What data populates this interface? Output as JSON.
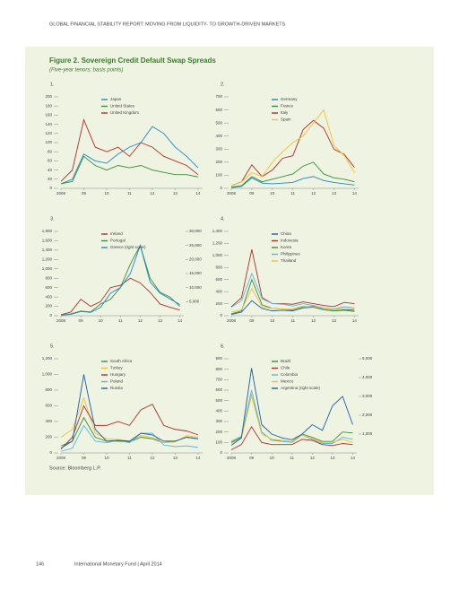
{
  "header": "GLOBAL FINANCIAL STABILITY REPORT: MOVING FROM LIQUIDITY- TO GROWTH-DRIVEN MARKETS",
  "figure": {
    "title": "Figure 2. Sovereign Credit Default Swap Spreads",
    "subtitle": "(Five-year tenors; basis points)"
  },
  "source": "Source: Bloomberg L.P.",
  "footer": {
    "page": "146",
    "text": "International Monetary Fund | April 2014"
  },
  "chart_data": [
    {
      "type": "line",
      "label": "1.",
      "x": [
        2008,
        2008.5,
        2009,
        2009.5,
        2010,
        2010.5,
        2011,
        2011.5,
        2012,
        2012.5,
        2013,
        2013.5,
        2014
      ],
      "xlim": [
        2008,
        2014.2
      ],
      "xticks": [
        2008,
        {
          "value": 2009,
          "label": "09"
        },
        {
          "value": 2010,
          "label": "10"
        },
        {
          "value": 2011,
          "label": "11"
        },
        {
          "value": 2012,
          "label": "12"
        },
        {
          "value": 2013,
          "label": "13"
        },
        {
          "value": 2014,
          "label": "14"
        }
      ],
      "ylim": [
        0,
        200
      ],
      "yticks": [
        0,
        20,
        40,
        60,
        80,
        100,
        120,
        140,
        160,
        180,
        200
      ],
      "series": [
        {
          "name": "Japan",
          "color": "#1f88c9",
          "values": [
            10,
            20,
            75,
            60,
            55,
            75,
            90,
            100,
            135,
            120,
            90,
            70,
            45
          ]
        },
        {
          "name": "United States",
          "color": "#3a8f3a",
          "values": [
            10,
            15,
            70,
            50,
            40,
            50,
            45,
            50,
            40,
            35,
            30,
            30,
            25
          ]
        },
        {
          "name": "United Kingdom",
          "color": "#b0302a",
          "values": [
            15,
            40,
            150,
            90,
            80,
            90,
            70,
            100,
            90,
            70,
            60,
            50,
            30
          ]
        }
      ]
    },
    {
      "type": "line",
      "label": "2.",
      "x": [
        2008,
        2008.5,
        2009,
        2009.5,
        2010,
        2010.5,
        2011,
        2011.5,
        2012,
        2012.5,
        2013,
        2013.5,
        2014
      ],
      "xlim": [
        2008,
        2014.2
      ],
      "xticks": [
        2008,
        {
          "value": 2009,
          "label": "09"
        },
        {
          "value": 2010,
          "label": "10"
        },
        {
          "value": 2011,
          "label": "11"
        },
        {
          "value": 2012,
          "label": "12"
        },
        {
          "value": 2013,
          "label": "13"
        },
        {
          "value": 2014,
          "label": "14"
        }
      ],
      "ylim": [
        0,
        700
      ],
      "yticks": [
        0,
        100,
        200,
        300,
        400,
        500,
        600,
        700
      ],
      "series": [
        {
          "name": "Germany",
          "color": "#1f88c9",
          "values": [
            5,
            15,
            80,
            40,
            35,
            40,
            45,
            75,
            90,
            60,
            45,
            35,
            25
          ]
        },
        {
          "name": "France",
          "color": "#3a8f3a",
          "values": [
            10,
            20,
            90,
            50,
            70,
            90,
            110,
            170,
            200,
            110,
            80,
            70,
            50
          ]
        },
        {
          "name": "Italy",
          "color": "#b0302a",
          "values": [
            20,
            50,
            180,
            90,
            140,
            230,
            250,
            450,
            520,
            460,
            300,
            260,
            160
          ]
        },
        {
          "name": "Spain",
          "color": "#f2c12e",
          "values": [
            20,
            50,
            120,
            90,
            200,
            280,
            350,
            400,
            500,
            600,
            330,
            250,
            120
          ]
        }
      ]
    },
    {
      "type": "line",
      "label": "3.",
      "x": [
        2008,
        2008.5,
        2009,
        2009.5,
        2010,
        2010.5,
        2011,
        2011.5,
        2012,
        2012.5,
        2013,
        2013.5,
        2014
      ],
      "xlim": [
        2008,
        2014.2
      ],
      "xticks": [
        2008,
        {
          "value": 2009,
          "label": "09"
        },
        {
          "value": 2010,
          "label": "10"
        },
        {
          "value": 2011,
          "label": "11"
        },
        {
          "value": 2012,
          "label": "12"
        },
        {
          "value": 2013,
          "label": "13"
        },
        {
          "value": 2014,
          "label": "14"
        }
      ],
      "ylim": [
        0,
        1800
      ],
      "yticks": [
        0,
        200,
        400,
        600,
        800,
        {
          "value": 1000,
          "label": "1,000"
        },
        {
          "value": 1200,
          "label": "1,200"
        },
        {
          "value": 1400,
          "label": "1,400"
        },
        {
          "value": 1600,
          "label": "1,600"
        },
        {
          "value": 1800,
          "label": "1,800"
        }
      ],
      "y2lim": [
        0,
        30000
      ],
      "y2ticks": [
        {
          "value": 5000,
          "label": "5,000"
        },
        {
          "value": 10000,
          "label": "10,000"
        },
        {
          "value": 15000,
          "label": "15,000"
        },
        {
          "value": 20000,
          "label": "20,000"
        },
        {
          "value": 25000,
          "label": "25,000"
        },
        {
          "value": 30000,
          "label": "30,000"
        }
      ],
      "series": [
        {
          "name": "Ireland",
          "color": "#b0302a",
          "values": [
            20,
            80,
            350,
            200,
            300,
            600,
            650,
            800,
            700,
            500,
            250,
            180,
            120
          ]
        },
        {
          "name": "Portugal",
          "color": "#3a8f3a",
          "values": [
            10,
            40,
            100,
            80,
            250,
            350,
            600,
            1100,
            1500,
            800,
            500,
            400,
            200
          ]
        },
        {
          "name": "Greece (right scale)",
          "color": "#1f88c9",
          "axis": "y2",
          "values": [
            200,
            500,
            1500,
            1200,
            3000,
            8000,
            10000,
            15000,
            25000,
            12000,
            8000,
            6000,
            4000
          ]
        }
      ]
    },
    {
      "type": "line",
      "label": "4.",
      "x": [
        2008,
        2008.5,
        2009,
        2009.5,
        2010,
        2010.5,
        2011,
        2011.5,
        2012,
        2012.5,
        2013,
        2013.5,
        2014
      ],
      "xlim": [
        2008,
        2014.2
      ],
      "xticks": [
        2008,
        {
          "value": 2009,
          "label": "09"
        },
        {
          "value": 2010,
          "label": "10"
        },
        {
          "value": 2011,
          "label": "11"
        },
        {
          "value": 2012,
          "label": "12"
        },
        {
          "value": 2013,
          "label": "13"
        },
        {
          "value": 2014,
          "label": "14"
        }
      ],
      "ylim": [
        0,
        1400
      ],
      "yticks": [
        0,
        200,
        400,
        600,
        800,
        {
          "value": 1000,
          "label": "1,000"
        },
        {
          "value": 1200,
          "label": "1,200"
        },
        {
          "value": 1400,
          "label": "1,400"
        }
      ],
      "series": [
        {
          "name": "China",
          "color": "#1f5fa8",
          "values": [
            20,
            60,
            250,
            120,
            80,
            90,
            80,
            130,
            140,
            100,
            80,
            100,
            90
          ]
        },
        {
          "name": "Indonesia",
          "color": "#b0302a",
          "values": [
            150,
            300,
            1100,
            300,
            200,
            200,
            190,
            230,
            200,
            170,
            150,
            220,
            200
          ]
        },
        {
          "name": "Korea",
          "color": "#3a8f3a",
          "values": [
            30,
            80,
            600,
            180,
            120,
            110,
            100,
            150,
            160,
            100,
            80,
            90,
            70
          ]
        },
        {
          "name": "Philippines",
          "color": "#5bb7e0",
          "values": [
            140,
            250,
            700,
            280,
            200,
            190,
            160,
            200,
            170,
            130,
            110,
            150,
            130
          ]
        },
        {
          "name": "Thailand",
          "color": "#f2c12e",
          "values": [
            60,
            100,
            450,
            150,
            120,
            110,
            110,
            160,
            150,
            120,
            100,
            130,
            110
          ]
        }
      ]
    },
    {
      "type": "line",
      "label": "5.",
      "x": [
        2008,
        2008.5,
        2009,
        2009.5,
        2010,
        2010.5,
        2011,
        2011.5,
        2012,
        2012.5,
        2013,
        2013.5,
        2014
      ],
      "xlim": [
        2008,
        2014.2
      ],
      "xticks": [
        2008,
        {
          "value": 2009,
          "label": "09"
        },
        {
          "value": 2010,
          "label": "10"
        },
        {
          "value": 2011,
          "label": "11"
        },
        {
          "value": 2012,
          "label": "12"
        },
        {
          "value": 2013,
          "label": "13"
        },
        {
          "value": 2014,
          "label": "14"
        }
      ],
      "ylim": [
        0,
        1200
      ],
      "yticks": [
        0,
        200,
        400,
        600,
        800,
        {
          "value": 1000,
          "label": "1,000"
        },
        {
          "value": 1200,
          "label": "1,200"
        }
      ],
      "series": [
        {
          "name": "South Africa",
          "color": "#3a8f3a",
          "values": [
            90,
            150,
            450,
            200,
            150,
            150,
            140,
            200,
            180,
            130,
            150,
            200,
            180
          ]
        },
        {
          "name": "Turkey",
          "color": "#f2c12e",
          "values": [
            200,
            300,
            700,
            250,
            180,
            170,
            150,
            220,
            200,
            130,
            140,
            220,
            200
          ]
        },
        {
          "name": "Hungary",
          "color": "#b0302a",
          "values": [
            50,
            200,
            600,
            350,
            350,
            400,
            350,
            550,
            620,
            350,
            300,
            280,
            230
          ]
        },
        {
          "name": "Poland",
          "color": "#5bb7e0",
          "values": [
            20,
            60,
            350,
            150,
            130,
            160,
            130,
            250,
            250,
            100,
            80,
            90,
            70
          ]
        },
        {
          "name": "Russia",
          "color": "#1f5fa8",
          "values": [
            60,
            150,
            1000,
            300,
            150,
            160,
            150,
            250,
            230,
            150,
            150,
            200,
            180
          ]
        }
      ]
    },
    {
      "type": "line",
      "label": "6.",
      "x": [
        2008,
        2008.5,
        2009,
        2009.5,
        2010,
        2010.5,
        2011,
        2011.5,
        2012,
        2012.5,
        2013,
        2013.5,
        2014
      ],
      "xlim": [
        2008,
        2014.2
      ],
      "xticks": [
        2008,
        {
          "value": 2009,
          "label": "09"
        },
        {
          "value": 2010,
          "label": "10"
        },
        {
          "value": 2011,
          "label": "11"
        },
        {
          "value": 2012,
          "label": "12"
        },
        {
          "value": 2013,
          "label": "13"
        },
        {
          "value": 2014,
          "label": "14"
        }
      ],
      "ylim": [
        0,
        900
      ],
      "yticks": [
        0,
        100,
        200,
        300,
        400,
        500,
        600,
        700,
        800,
        900
      ],
      "y2lim": [
        0,
        5000
      ],
      "y2ticks": [
        {
          "value": 1000,
          "label": "1,000"
        },
        {
          "value": 2000,
          "label": "2,000"
        },
        {
          "value": 3000,
          "label": "3,000"
        },
        {
          "value": 4000,
          "label": "4,000"
        },
        {
          "value": 5000,
          "label": "5,000"
        }
      ],
      "series": [
        {
          "name": "Brazil",
          "color": "#3a8f3a",
          "values": [
            100,
            150,
            550,
            200,
            120,
            120,
            110,
            180,
            150,
            110,
            110,
            200,
            190
          ]
        },
        {
          "name": "Chile",
          "color": "#b0302a",
          "values": [
            30,
            80,
            250,
            100,
            80,
            80,
            80,
            130,
            120,
            80,
            70,
            90,
            80
          ]
        },
        {
          "name": "Colombia",
          "color": "#5bb7e0",
          "values": [
            110,
            160,
            600,
            200,
            120,
            110,
            100,
            170,
            130,
            90,
            90,
            150,
            130
          ]
        },
        {
          "name": "Mexico",
          "color": "#f2c12e",
          "values": [
            90,
            140,
            550,
            180,
            130,
            120,
            110,
            170,
            140,
            100,
            100,
            130,
            100
          ]
        },
        {
          "name": "Argentina (right scale)",
          "color": "#1f5fa8",
          "axis": "y2",
          "values": [
            400,
            800,
            4500,
            1500,
            1000,
            800,
            700,
            1000,
            1500,
            1200,
            2500,
            3000,
            1500
          ]
        }
      ]
    }
  ]
}
